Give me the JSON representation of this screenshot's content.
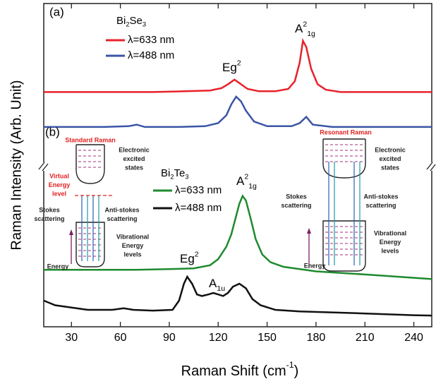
{
  "chart_data": {
    "type": "line",
    "x_label": [
      {
        "t": "Raman Shift (cm"
      },
      {
        "t": "-1",
        "sup": true
      },
      {
        "t": ")"
      }
    ],
    "y_label": "Raman Intensity (Arb. Unit)",
    "xlim": [
      13,
      251
    ],
    "xticks": [
      30,
      60,
      90,
      120,
      150,
      180,
      210,
      240
    ],
    "panels": [
      {
        "label": "(a)",
        "ylim": [
          0,
          100
        ],
        "legend_title": [
          {
            "t": "Bi"
          },
          {
            "t": "2",
            "sub": true
          },
          {
            "t": "Se"
          },
          {
            "t": "3",
            "sub": true
          }
        ],
        "series": [
          {
            "name": "λ=633 nm",
            "color": "#e8222a",
            "x": [
              13,
              40,
              60,
              70,
              80,
              100,
              115,
              122,
              126,
              130,
              134,
              138,
              145,
              155,
              163,
              167,
              170,
              172,
              174,
              177,
              181,
              186,
              195,
              220,
              251
            ],
            "values": [
              43,
              43,
              43,
              43,
              43,
              43.5,
              44,
              45.5,
              48,
              51,
              48,
              45,
              43.5,
              43.5,
              45,
              50,
              62,
              76,
              72,
              58,
              48,
              44.5,
              43,
              43,
              43
            ]
          },
          {
            "name": "λ=488 nm",
            "color": "#3a55a6",
            "x": [
              13,
              50,
              65,
              70,
              75,
              95,
              112,
              120,
              125,
              128,
              131,
              134,
              137,
              142,
              150,
              165,
              170,
              174,
              178,
              190,
              220,
              251
            ],
            "values": [
              20.5,
              20.5,
              21,
              22,
              20.5,
              20.5,
              21,
              23,
              28,
              35,
              40,
              37,
              31,
              24,
              21,
              21,
              23,
              27,
              22,
              20.5,
              20.5,
              20.5
            ]
          }
        ],
        "annotations": [
          [
            {
              "t": "Eg"
            },
            {
              "t": "2",
              "sup": true
            }
          ],
          [
            {
              "t": "A"
            },
            {
              "t": "2",
              "sup": true
            },
            {
              "t": "1g",
              "sub": true
            }
          ]
        ]
      },
      {
        "label": "(b)",
        "ylim": [
          0,
          100
        ],
        "legend_title": [
          {
            "t": "Bi"
          },
          {
            "t": "2",
            "sub": true
          },
          {
            "t": "Te"
          },
          {
            "t": "3",
            "sub": true
          }
        ],
        "series": [
          {
            "name": "λ=633 nm",
            "color": "#1e8a2e",
            "x": [
              13,
              40,
              70,
              90,
              105,
              115,
              120,
              125,
              128,
              131,
              133,
              135,
              137,
              140,
              143,
              147,
              152,
              160,
              180,
              210,
              251
            ],
            "values": [
              37,
              37,
              37,
              37.5,
              38,
              40,
              44,
              52,
              60,
              72,
              80,
              85,
              82,
              70,
              57,
              47,
              42,
              39,
              36,
              34,
              31
            ]
          },
          {
            "name": "λ=488 nm",
            "color": "#111111",
            "x": [
              13,
              20,
              40,
              55,
              62,
              68,
              80,
              92,
              96,
              99,
              101,
              104,
              107,
              110,
              114,
              117,
              120,
              123,
              126,
              129,
              133,
              137,
              141,
              146,
              155,
              170,
              200,
              240,
              251
            ],
            "values": [
              17,
              14,
              11,
              11,
              12,
              11,
              10.5,
              11,
              17,
              28,
              32.5,
              28,
              21,
              20,
              21,
              22,
              21,
              20,
              22,
              26,
              28,
              25,
              18,
              14,
              11,
              10,
              9,
              7.5,
              7.3
            ]
          }
        ],
        "annotations": [
          [
            {
              "t": "Eg"
            },
            {
              "t": "2",
              "sup": true
            }
          ],
          [
            {
              "t": "A"
            },
            {
              "t": "1u",
              "sub": true
            }
          ],
          [
            {
              "t": "A"
            },
            {
              "t": "2",
              "sup": true
            },
            {
              "t": "1g",
              "sub": true
            }
          ]
        ]
      }
    ],
    "insets": [
      {
        "title": "Standard Raman",
        "excited": [
          "Electronic",
          "excited",
          "states"
        ],
        "virtual": [
          "Virtual",
          "Energy",
          "level"
        ],
        "stokes": [
          "Stokes",
          "scattering"
        ],
        "anti": [
          "Anti-stokes",
          "scattering"
        ],
        "vib": [
          "Vibrational",
          "Energy",
          "levels"
        ],
        "energy": "Energy"
      },
      {
        "title": "Resonant Raman",
        "excited": [
          "Electronic",
          "excited",
          "states"
        ],
        "stokes": [
          "Stokes",
          "scattering"
        ],
        "anti": [
          "Anti-stokes",
          "scattering"
        ],
        "vib": [
          "Vibrational",
          "Energy",
          "levels"
        ],
        "energy": "Energy"
      }
    ]
  }
}
